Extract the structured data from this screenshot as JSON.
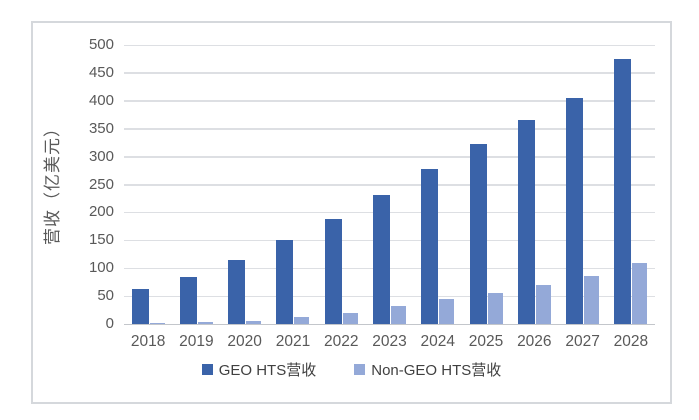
{
  "chart_data": {
    "type": "bar",
    "title": "",
    "xlabel": "",
    "ylabel": "营收（亿美元）",
    "ylim": [
      0,
      500
    ],
    "y_ticks": [
      0,
      50,
      100,
      150,
      200,
      250,
      300,
      350,
      400,
      450,
      500
    ],
    "grid": true,
    "legend_position": "bottom",
    "categories": [
      "2018",
      "2019",
      "2020",
      "2021",
      "2022",
      "2023",
      "2024",
      "2025",
      "2026",
      "2027",
      "2028"
    ],
    "series": [
      {
        "name": "GEO HTS营收",
        "color": "#3a63a9",
        "values": [
          62,
          85,
          115,
          150,
          188,
          232,
          278,
          322,
          366,
          406,
          475
        ]
      },
      {
        "name": "Non-GEO HTS营收",
        "color": "#94a9d8",
        "values": [
          2,
          3,
          6,
          13,
          19,
          33,
          45,
          56,
          70,
          86,
          110
        ]
      }
    ],
    "colors": {
      "gridline": "#dddfe3",
      "axis_line": "#c3c6cb",
      "tick_text": "#595959",
      "frame_border": "#d5d8dc",
      "background": "#ffffff"
    }
  }
}
